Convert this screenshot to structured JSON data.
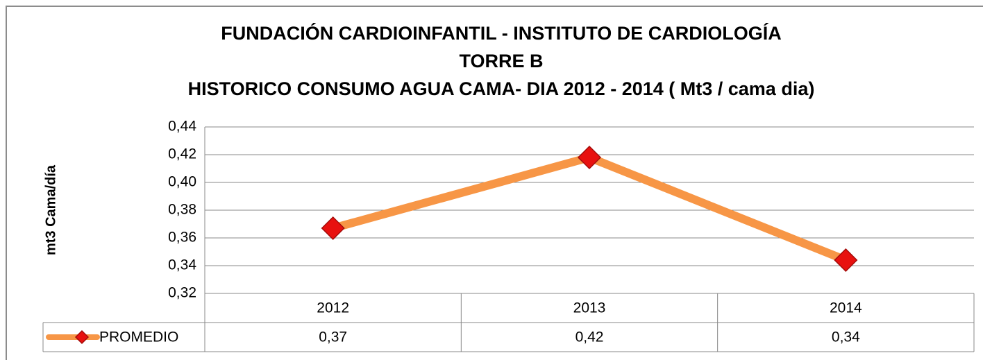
{
  "chart_data": {
    "type": "line",
    "title": [
      "FUNDACIÓN CARDIOINFANTIL - INSTITUTO DE CARDIOLOGÍA",
      "TORRE B",
      "HISTORICO CONSUMO AGUA CAMA- DIA  2012 - 2014  ( Mt3 / cama dia)"
    ],
    "y_label": "mt3 Cama/día",
    "categories": [
      "2012",
      "2013",
      "2014"
    ],
    "series": [
      {
        "name": "PROMEDIO",
        "color": "#f79646",
        "marker_color": "#e8110f",
        "values": [
          0.367,
          0.418,
          0.344
        ],
        "value_labels": [
          "0,37",
          "0,42",
          "0,34"
        ]
      }
    ],
    "ylim": [
      0.32,
      0.44
    ],
    "yticks": [
      {
        "value": 0.32,
        "label": "0,32"
      },
      {
        "value": 0.34,
        "label": "0,34"
      },
      {
        "value": 0.36,
        "label": "0,36"
      },
      {
        "value": 0.38,
        "label": "0,38"
      },
      {
        "value": 0.4,
        "label": "0,40"
      },
      {
        "value": 0.42,
        "label": "0,42"
      },
      {
        "value": 0.44,
        "label": "0,44"
      }
    ],
    "grid": true
  }
}
